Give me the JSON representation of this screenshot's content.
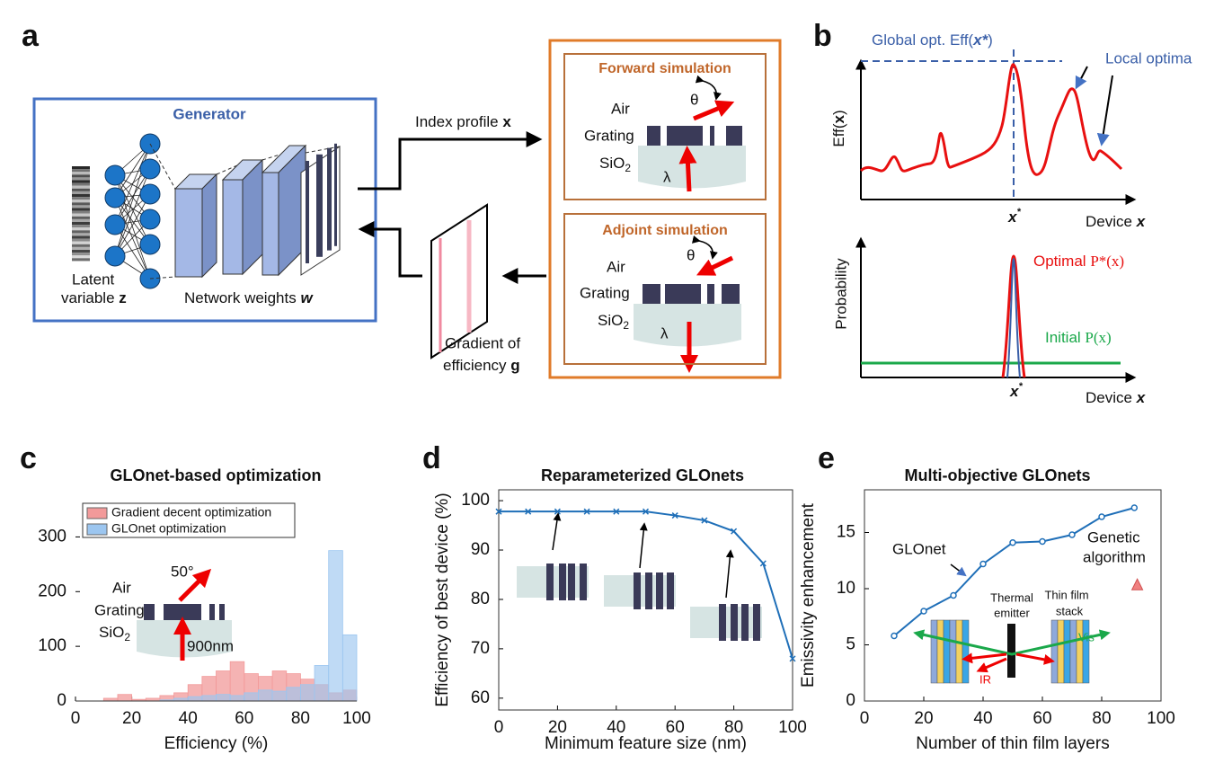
{
  "figure": {
    "labels": {
      "a": "a",
      "b": "b",
      "c": "c",
      "d": "d",
      "e": "e"
    },
    "generator": {
      "title": "Generator",
      "latent": "Latent",
      "variable": "variable",
      "z": "z",
      "weights": "Network weights",
      "w": "w"
    },
    "flow": {
      "index": "Index profile",
      "x": "x",
      "gradient": "Gradient of",
      "efficiency": "efficiency",
      "g": "g"
    },
    "forward": {
      "title": "Forward simulation",
      "air": "Air",
      "grating": "Grating",
      "sio": "SiO",
      "sub": "2",
      "theta": "θ",
      "lambda": "λ"
    },
    "adjoint": {
      "title": "Adjoint simulation",
      "air": "Air",
      "grating": "Grating",
      "sio": "SiO",
      "sub": "2",
      "theta": "θ",
      "lambda": "λ"
    },
    "panel_b": {
      "global": "Global opt. Eff(",
      "global_x": "x*",
      "close": ")",
      "local": "Local optima",
      "eff": "Eff(",
      "eff_x": "x",
      "x": "x",
      "star": "*",
      "device": "Device",
      "probability": "Probability",
      "optimal": "Optimal",
      "optimal_p": "P*(x)",
      "initial": "Initial",
      "initial_p": "P(x)"
    }
  },
  "chart_data": [
    {
      "type": "histogram",
      "title": "GLOnet-based optimization",
      "xlabel": "Efficiency (%)",
      "bins": [
        0,
        5,
        10,
        15,
        20,
        25,
        30,
        35,
        40,
        45,
        50,
        55,
        60,
        65,
        70,
        75,
        80,
        85,
        90,
        95,
        100
      ],
      "series": [
        {
          "name": "Gradient decent optimization",
          "color": "#f29a9a",
          "values": [
            0,
            0,
            5,
            12,
            3,
            5,
            10,
            15,
            30,
            45,
            55,
            72,
            50,
            45,
            55,
            50,
            40,
            30,
            15,
            20
          ]
        },
        {
          "name": "GLOnet optimization",
          "color": "#9cc6f0",
          "values": [
            0,
            0,
            0,
            0,
            0,
            0,
            2,
            5,
            8,
            10,
            12,
            10,
            15,
            20,
            18,
            25,
            30,
            65,
            275,
            121
          ]
        }
      ],
      "xlim": [
        0,
        100
      ],
      "xticks": [
        0,
        20,
        40,
        60,
        80,
        100
      ],
      "ylim": [
        0,
        350
      ],
      "yticks": [
        0,
        100,
        200,
        300
      ],
      "annotations": {
        "air": "Air",
        "grating": "Grating",
        "sio": "SiO",
        "sub": "2",
        "angle": "50°",
        "wavelength": "900nm"
      }
    },
    {
      "type": "line",
      "title": "Reparameterized GLOnets",
      "xlabel": "Minimum feature size (nm)",
      "ylabel": "Efficiency of best device (%)",
      "series": [
        {
          "color": "#1f6fb8",
          "x": [
            0,
            10,
            20,
            30,
            40,
            50,
            60,
            70,
            80,
            90,
            100
          ],
          "values": [
            97.8,
            97.8,
            97.8,
            97.8,
            97.8,
            97.8,
            97,
            96,
            93.8,
            87.3,
            68
          ]
        }
      ],
      "xlim": [
        0,
        100
      ],
      "xticks": [
        0,
        20,
        40,
        60,
        80,
        100
      ],
      "ylim": [
        57.6,
        102.2
      ],
      "yticks": [
        60,
        70,
        80,
        90,
        100
      ]
    },
    {
      "type": "line",
      "title": "Multi-objective  GLOnets",
      "xlabel": "Number of thin film layers",
      "ylabel": "Emissivity enhancement",
      "series": [
        {
          "color": "#1f6fb8",
          "x": [
            10,
            20,
            30,
            40,
            50,
            60,
            70,
            80,
            91
          ],
          "values": [
            5.8,
            8,
            9.4,
            12.2,
            14.1,
            14.2,
            14.8,
            16.4,
            17.2
          ]
        },
        {
          "color": "#f08080",
          "marker": "triangle",
          "x": [
            92
          ],
          "values": [
            10.3
          ]
        }
      ],
      "xlim": [
        0,
        100
      ],
      "xticks": [
        0,
        20,
        40,
        60,
        80,
        100
      ],
      "ylim": [
        0,
        18.8
      ],
      "yticks": [
        0,
        5,
        10,
        15
      ],
      "annotations": {
        "glonet": "GLOnet",
        "genetic": "Genetic",
        "algorithm": "algorithm",
        "thermal": "Thermal",
        "emitter": "emitter",
        "thin": "Thin film",
        "stack": "stack",
        "vis": "Vis",
        "ir": "IR"
      }
    }
  ]
}
